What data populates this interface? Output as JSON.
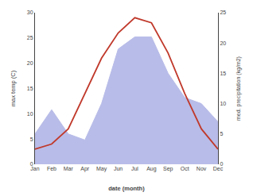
{
  "chart_data": {
    "type": "line",
    "categories": [
      "Jan",
      "Feb",
      "Mar",
      "Apr",
      "May",
      "Jun",
      "Jul",
      "Aug",
      "Sep",
      "Oct",
      "Nov",
      "Dec"
    ],
    "series": [
      {
        "type": "area",
        "axis": "y2",
        "color": "#b8bce8",
        "values": [
          5,
          9,
          5,
          4,
          10,
          19,
          21,
          21,
          15,
          11,
          10,
          7
        ]
      },
      {
        "type": "line",
        "axis": "y",
        "color": "#c0392b",
        "values": [
          3,
          4,
          7,
          14,
          21,
          26,
          29,
          28,
          22,
          14,
          7,
          3
        ]
      }
    ],
    "xlabel": "date (month)",
    "ylabel": "max temp (C)",
    "y2label": "med. precipitation (kg/m2)",
    "ylim": [
      0,
      30
    ],
    "yticks": [
      0,
      5,
      10,
      15,
      20,
      25,
      30
    ],
    "y2lim": [
      0,
      25
    ],
    "y2ticks": [
      0,
      5,
      10,
      15,
      20,
      25
    ],
    "grid": false
  }
}
